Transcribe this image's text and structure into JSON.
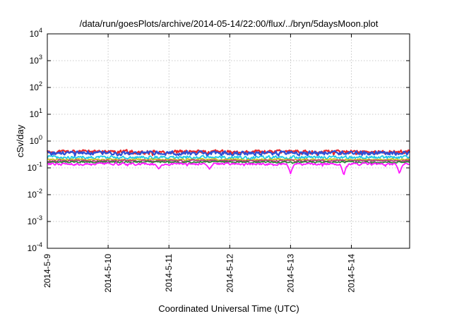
{
  "chart_data": {
    "type": "line",
    "title": "/data/run/goesPlots/archive/2014-05-14/22:00/flux/../bryn/5daysMoon.plot",
    "xlabel": "Coordinated Universal Time (UTC)",
    "ylabel": "cSv/day",
    "yscale": "log",
    "ylim": [
      0.0001,
      10000
    ],
    "xlim": [
      "2014-05-09",
      "2014-05-14 23:00"
    ],
    "x_ticks": [
      "2014-5-9",
      "2014-5-10",
      "2014-5-11",
      "2014-5-12",
      "2014-5-13",
      "2014-5-14"
    ],
    "y_ticks": [
      {
        "value": 0.0001,
        "base": "10",
        "exp": "-4"
      },
      {
        "value": 0.001,
        "base": "10",
        "exp": "-3"
      },
      {
        "value": 0.01,
        "base": "10",
        "exp": "-2"
      },
      {
        "value": 0.1,
        "base": "10",
        "exp": "-1"
      },
      {
        "value": 1,
        "base": "10",
        "exp": "0"
      },
      {
        "value": 10,
        "base": "10",
        "exp": "1"
      },
      {
        "value": 100,
        "base": "10",
        "exp": "2"
      },
      {
        "value": 1000,
        "base": "10",
        "exp": "3"
      },
      {
        "value": 10000,
        "base": "10",
        "exp": "4"
      }
    ],
    "grid": true,
    "legend": "none",
    "series": [
      {
        "color": "#e8262a",
        "base": 0.4,
        "amp": 0.22,
        "seed": 11,
        "dips": []
      },
      {
        "color": "#2e4fd6",
        "base": 0.36,
        "amp": 0.24,
        "seed": 23,
        "dips": []
      },
      {
        "color": "#1ec8e6",
        "base": 0.25,
        "amp": 0.18,
        "seed": 37,
        "dips": []
      },
      {
        "color": "#c8c020",
        "base": 0.205,
        "amp": 0.1,
        "seed": 41,
        "dips": []
      },
      {
        "color": "#b23a7a",
        "base": 0.185,
        "amp": 0.1,
        "seed": 53,
        "dips": []
      },
      {
        "color": "#2a8a3a",
        "base": 0.165,
        "amp": 0.09,
        "seed": 67,
        "dips": []
      },
      {
        "color": "#ff1aff",
        "base": 0.14,
        "amp": 0.14,
        "seed": 79,
        "dips": [
          [
            "2014-05-13 00:00",
            0.06
          ],
          [
            "2014-05-13 21:00",
            0.05
          ],
          [
            "2014-05-14 19:00",
            0.06
          ],
          [
            "2014-05-11 16:00",
            0.09
          ],
          [
            "2014-05-10 20:00",
            0.09
          ]
        ]
      }
    ]
  }
}
